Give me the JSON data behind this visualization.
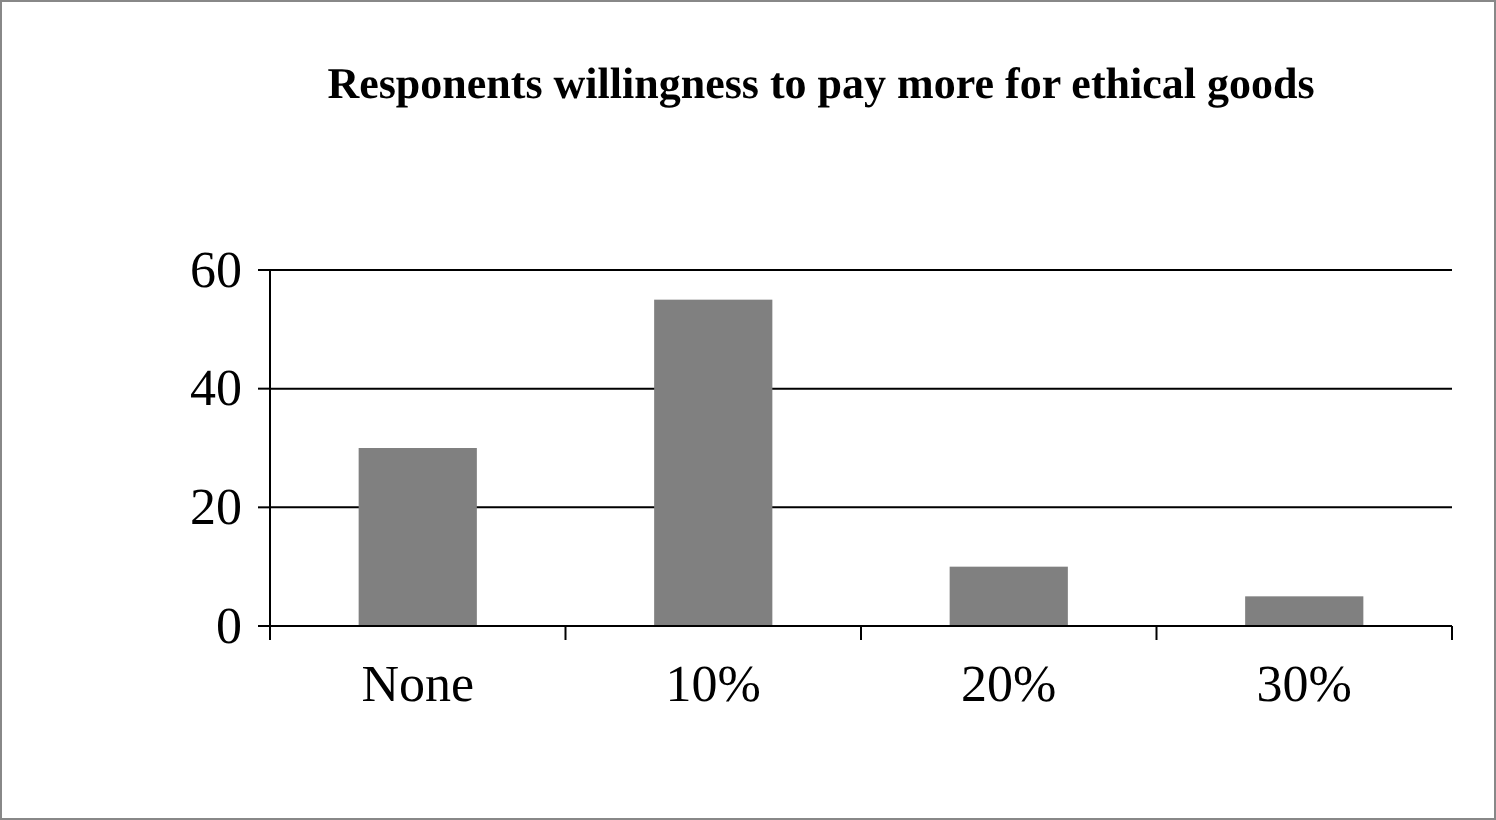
{
  "chart_data": {
    "type": "bar",
    "title": "Responents willingness to pay more for ethical goods",
    "categories": [
      "None",
      "10%",
      "20%",
      "30%"
    ],
    "values": [
      30,
      55,
      10,
      5
    ],
    "color": "#808080",
    "ylim": [
      0,
      60
    ],
    "yticks": [
      0,
      20,
      40,
      60
    ],
    "grid": "y"
  }
}
